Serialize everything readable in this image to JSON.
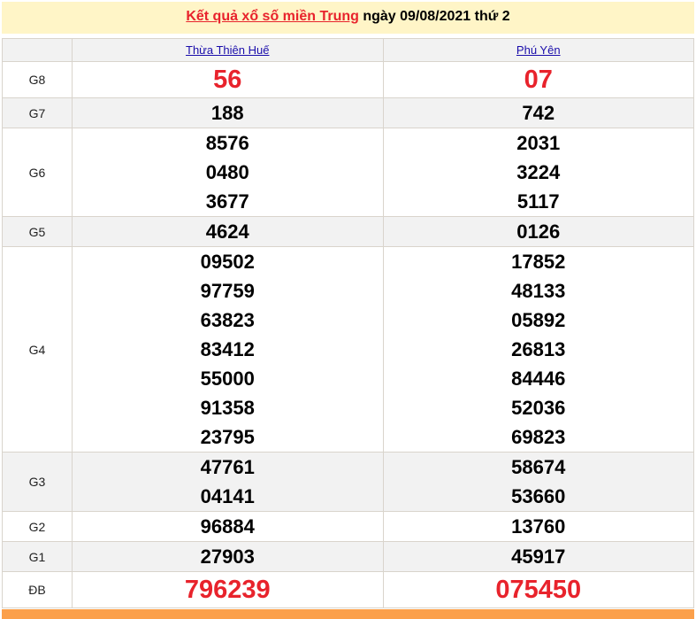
{
  "header": {
    "link_text": "Kết quả xổ số miền Trung",
    "suffix": " ngày 09/08/2021 thứ 2"
  },
  "provinces": [
    "Thừa Thiên Huế",
    "Phú Yên"
  ],
  "prizes": [
    {
      "label": "G8",
      "values": [
        [
          "56"
        ],
        [
          "07"
        ]
      ],
      "highlight": true
    },
    {
      "label": "G7",
      "values": [
        [
          "188"
        ],
        [
          "742"
        ]
      ]
    },
    {
      "label": "G6",
      "values": [
        [
          "8576",
          "0480",
          "3677"
        ],
        [
          "2031",
          "3224",
          "5117"
        ]
      ]
    },
    {
      "label": "G5",
      "values": [
        [
          "4624"
        ],
        [
          "0126"
        ]
      ]
    },
    {
      "label": "G4",
      "values": [
        [
          "09502",
          "97759",
          "63823",
          "83412",
          "55000",
          "91358",
          "23795"
        ],
        [
          "17852",
          "48133",
          "05892",
          "26813",
          "84446",
          "52036",
          "69823"
        ]
      ]
    },
    {
      "label": "G3",
      "values": [
        [
          "47761",
          "04141"
        ],
        [
          "58674",
          "53660"
        ]
      ]
    },
    {
      "label": "G2",
      "values": [
        [
          "96884"
        ],
        [
          "13760"
        ]
      ]
    },
    {
      "label": "G1",
      "values": [
        [
          "27903"
        ],
        [
          "45917"
        ]
      ]
    },
    {
      "label": "ĐB",
      "values": [
        [
          "796239"
        ],
        [
          "075450"
        ]
      ],
      "highlight": true
    }
  ],
  "colors": {
    "accent_red": "#e8232c",
    "title_bg": "#fff5c7",
    "footer_bg": "#fba04b"
  }
}
